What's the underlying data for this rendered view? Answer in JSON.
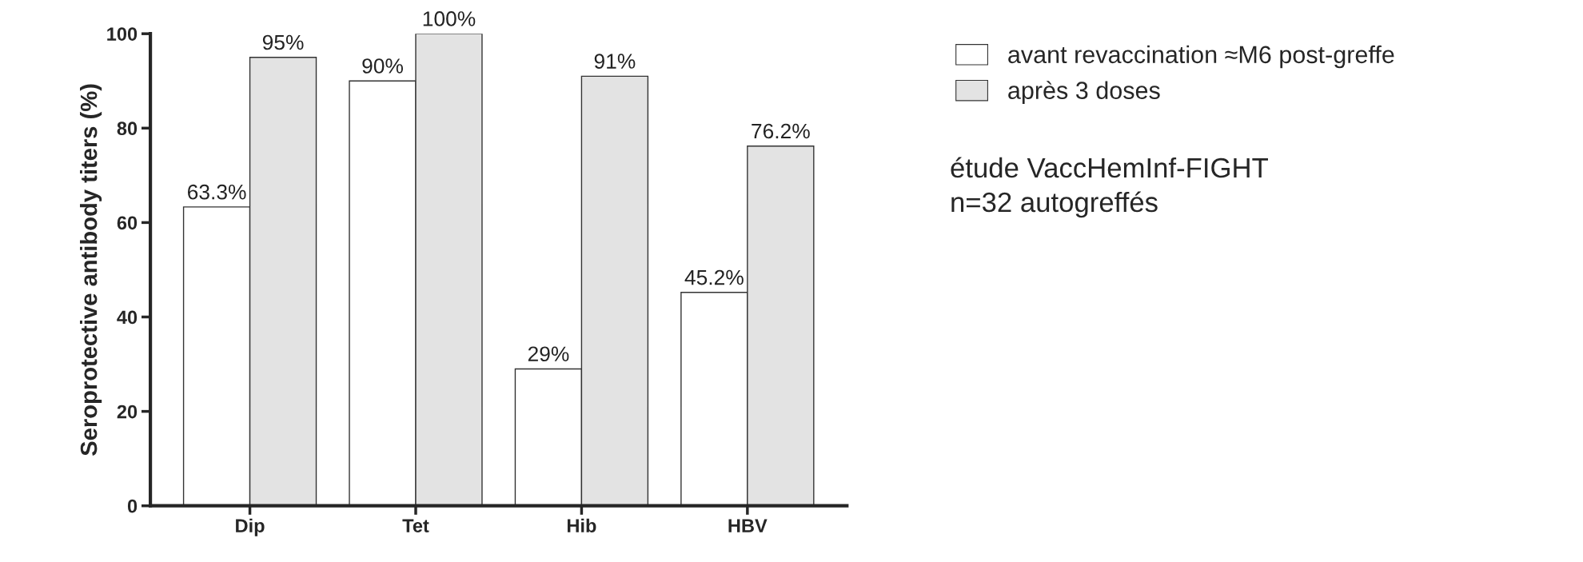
{
  "chart_data": {
    "type": "bar",
    "ylabel": "Seroprotective antibody titers (%)",
    "categories": [
      "Dip",
      "Tet",
      "Hib",
      "HBV"
    ],
    "series": [
      {
        "name": "avant revaccination ≈M6 post-greffe",
        "color": "#ffffff",
        "values": [
          63.3,
          90,
          29,
          45.2
        ],
        "value_labels": [
          "63.3%",
          "90%",
          "29%",
          "45.2%"
        ]
      },
      {
        "name": "après 3 doses",
        "color": "#e3e3e3",
        "values": [
          95,
          100,
          91,
          76.2
        ],
        "value_labels": [
          "95%",
          "100%",
          "91%",
          "76.2%"
        ]
      }
    ],
    "ylim": [
      0,
      100
    ],
    "yticks": [
      0,
      20,
      40,
      60,
      80,
      100
    ],
    "grid": false,
    "legend": "right",
    "annotations": [
      "étude VaccHemInf-FIGHT\nn=32 autogreffés"
    ]
  }
}
